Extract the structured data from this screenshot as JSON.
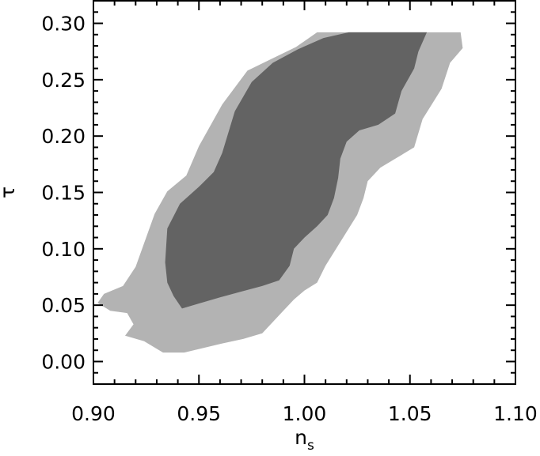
{
  "chart_data": {
    "type": "contour",
    "title": "",
    "xlabel": "n",
    "xlabel_subscript": "s",
    "ylabel": "τ",
    "xlim": [
      0.9,
      1.1
    ],
    "ylim": [
      -0.02,
      0.32
    ],
    "x_ticks": [
      0.9,
      0.95,
      1.0,
      1.05,
      1.1
    ],
    "x_tick_labels": [
      "0.90",
      "0.95",
      "1.00",
      "1.05",
      "1.10"
    ],
    "y_ticks": [
      0.0,
      0.05,
      0.1,
      0.15,
      0.2,
      0.25,
      0.3
    ],
    "y_tick_labels": [
      "0.00",
      "0.05",
      "0.10",
      "0.15",
      "0.20",
      "0.25",
      "0.30"
    ],
    "grid": false,
    "colors": {
      "outer": "#b3b3b3",
      "inner": "#636363",
      "axis": "#000000"
    },
    "regions": [
      {
        "level": "outer",
        "points": [
          [
            0.933,
            0.008
          ],
          [
            0.943,
            0.008
          ],
          [
            0.952,
            0.012
          ],
          [
            0.961,
            0.016
          ],
          [
            0.971,
            0.02
          ],
          [
            0.98,
            0.025
          ],
          [
            0.985,
            0.035
          ],
          [
            0.99,
            0.045
          ],
          [
            0.995,
            0.055
          ],
          [
            1.0,
            0.063
          ],
          [
            1.006,
            0.07
          ],
          [
            1.01,
            0.085
          ],
          [
            1.015,
            0.1
          ],
          [
            1.02,
            0.115
          ],
          [
            1.025,
            0.13
          ],
          [
            1.028,
            0.145
          ],
          [
            1.03,
            0.16
          ],
          [
            1.036,
            0.172
          ],
          [
            1.044,
            0.181
          ],
          [
            1.052,
            0.19
          ],
          [
            1.056,
            0.215
          ],
          [
            1.065,
            0.242
          ],
          [
            1.069,
            0.265
          ],
          [
            1.075,
            0.278
          ],
          [
            1.074,
            0.292
          ],
          [
            1.062,
            0.292
          ],
          [
            1.048,
            0.292
          ],
          [
            1.036,
            0.292
          ],
          [
            1.022,
            0.292
          ],
          [
            1.006,
            0.292
          ],
          [
            0.996,
            0.279
          ],
          [
            0.985,
            0.269
          ],
          [
            0.973,
            0.258
          ],
          [
            0.961,
            0.228
          ],
          [
            0.95,
            0.191
          ],
          [
            0.944,
            0.165
          ],
          [
            0.935,
            0.151
          ],
          [
            0.929,
            0.131
          ],
          [
            0.924,
            0.105
          ],
          [
            0.92,
            0.084
          ],
          [
            0.914,
            0.067
          ],
          [
            0.905,
            0.06
          ],
          [
            0.902,
            0.052
          ],
          [
            0.908,
            0.045
          ],
          [
            0.916,
            0.043
          ],
          [
            0.919,
            0.033
          ],
          [
            0.915,
            0.023
          ],
          [
            0.924,
            0.018
          ]
        ]
      },
      {
        "level": "inner",
        "points": [
          [
            0.942,
            0.047
          ],
          [
            0.951,
            0.052
          ],
          [
            0.96,
            0.057
          ],
          [
            0.97,
            0.062
          ],
          [
            0.98,
            0.067
          ],
          [
            0.988,
            0.072
          ],
          [
            0.993,
            0.085
          ],
          [
            0.995,
            0.1
          ],
          [
            1.0,
            0.11
          ],
          [
            1.006,
            0.12
          ],
          [
            1.011,
            0.13
          ],
          [
            1.014,
            0.145
          ],
          [
            1.016,
            0.163
          ],
          [
            1.017,
            0.18
          ],
          [
            1.02,
            0.195
          ],
          [
            1.026,
            0.205
          ],
          [
            1.035,
            0.21
          ],
          [
            1.043,
            0.22
          ],
          [
            1.046,
            0.24
          ],
          [
            1.052,
            0.26
          ],
          [
            1.054,
            0.275
          ],
          [
            1.058,
            0.292
          ],
          [
            1.047,
            0.292
          ],
          [
            1.034,
            0.292
          ],
          [
            1.021,
            0.292
          ],
          [
            1.009,
            0.287
          ],
          [
            0.997,
            0.277
          ],
          [
            0.985,
            0.265
          ],
          [
            0.975,
            0.248
          ],
          [
            0.967,
            0.222
          ],
          [
            0.961,
            0.185
          ],
          [
            0.957,
            0.168
          ],
          [
            0.95,
            0.155
          ],
          [
            0.941,
            0.14
          ],
          [
            0.935,
            0.118
          ],
          [
            0.934,
            0.088
          ],
          [
            0.935,
            0.07
          ],
          [
            0.938,
            0.058
          ]
        ]
      }
    ]
  }
}
